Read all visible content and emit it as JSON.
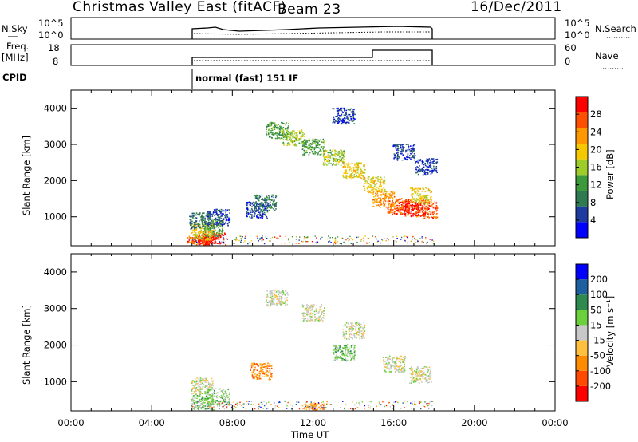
{
  "header": {
    "station": "Christmas Valley East (fitACF)",
    "beam": "Beam 23",
    "date": "16/Dec/2011"
  },
  "strip_nsky": {
    "label": "N.Sky",
    "right_label": "N.Search",
    "left_ticks": [
      "10^5",
      "10^0"
    ],
    "right_ticks": [
      "10^5",
      "10^0"
    ]
  },
  "strip_freq": {
    "label_line1": "Freq.",
    "label_line2": "[MHz]",
    "right_label": "Nave",
    "left_ticks": [
      "18",
      "8"
    ],
    "right_ticks": [
      "60",
      "0"
    ]
  },
  "cpid": {
    "label": "CPID",
    "program": "normal (fast) 151 IF"
  },
  "colors": {
    "power": [
      "#0000ff",
      "#1e3ca0",
      "#2f7a50",
      "#3c9a3c",
      "#9ecc28",
      "#f5c800",
      "#ff9800",
      "#ff5000",
      "#ff0000"
    ],
    "velocity": [
      "#ff0000",
      "#ff4a00",
      "#ff8c00",
      "#ffc040",
      "#c8c8c8",
      "#6ccf3c",
      "#2f8a50",
      "#1e5fa0",
      "#0000ff"
    ]
  },
  "chart_data": [
    {
      "type": "heatmap",
      "name": "power-panel",
      "xlabel": "",
      "ylabel": "Slant Range [km]",
      "xlim": [
        0,
        24
      ],
      "ylim": [
        200,
        4500
      ],
      "yticks": [
        1000,
        2000,
        3000,
        4000
      ],
      "colorbar": {
        "label": "Power [dB]",
        "range": [
          0,
          32
        ],
        "ticks": [
          "28",
          "24",
          "20",
          "16",
          "12",
          "8",
          "4"
        ]
      },
      "regions": [
        {
          "t": 6.3,
          "r": 250,
          "level": 7
        },
        {
          "t": 6.6,
          "r": 300,
          "level": 8
        },
        {
          "t": 7.1,
          "r": 350,
          "level": 8
        },
        {
          "t": 6.5,
          "r": 600,
          "level": 5
        },
        {
          "t": 7.0,
          "r": 700,
          "level": 3
        },
        {
          "t": 6.4,
          "r": 900,
          "level": 2
        },
        {
          "t": 7.3,
          "r": 1000,
          "level": 1
        },
        {
          "t": 9.2,
          "r": 1200,
          "level": 1
        },
        {
          "t": 9.6,
          "r": 1400,
          "level": 2
        },
        {
          "t": 10.2,
          "r": 3400,
          "level": 3
        },
        {
          "t": 11.0,
          "r": 3200,
          "level": 4
        },
        {
          "t": 12.0,
          "r": 2950,
          "level": 3
        },
        {
          "t": 13.0,
          "r": 2650,
          "level": 4
        },
        {
          "t": 14.0,
          "r": 2300,
          "level": 5
        },
        {
          "t": 15.0,
          "r": 1900,
          "level": 5
        },
        {
          "t": 15.5,
          "r": 1500,
          "level": 6
        },
        {
          "t": 16.2,
          "r": 1300,
          "level": 7
        },
        {
          "t": 17.0,
          "r": 1250,
          "level": 8
        },
        {
          "t": 17.6,
          "r": 1200,
          "level": 7
        },
        {
          "t": 17.3,
          "r": 1600,
          "level": 5
        },
        {
          "t": 13.5,
          "r": 3800,
          "level": 1
        },
        {
          "t": 16.5,
          "r": 2800,
          "level": 1
        },
        {
          "t": 17.6,
          "r": 2400,
          "level": 1
        }
      ]
    },
    {
      "type": "heatmap",
      "name": "velocity-panel",
      "xlabel": "Time UT",
      "ylabel": "Slant Range [km]",
      "xlim": [
        0,
        24
      ],
      "ylim": [
        200,
        4500
      ],
      "xticks": [
        "00:00",
        "04:00",
        "08:00",
        "12:00",
        "16:00",
        "20:00",
        "00:00"
      ],
      "yticks": [
        1000,
        2000,
        3000,
        4000
      ],
      "colorbar": {
        "label": "Velocity [m s⁻¹]",
        "range": [
          -250,
          250
        ],
        "ticks": [
          "200",
          "100",
          "50",
          "15",
          "-15",
          "-50",
          "-100",
          "-200"
        ]
      },
      "regions": [
        {
          "t": 6.5,
          "r": 900,
          "level": 4
        },
        {
          "t": 6.5,
          "r": 450,
          "level": 5
        },
        {
          "t": 7.3,
          "r": 600,
          "level": 5
        },
        {
          "t": 9.4,
          "r": 1300,
          "level": 2
        },
        {
          "t": 10.2,
          "r": 3300,
          "level": 4
        },
        {
          "t": 12.0,
          "r": 2900,
          "level": 4
        },
        {
          "t": 14.0,
          "r": 2400,
          "level": 4
        },
        {
          "t": 16.0,
          "r": 1500,
          "level": 4
        },
        {
          "t": 17.3,
          "r": 1200,
          "level": 4
        },
        {
          "t": 13.5,
          "r": 1800,
          "level": 5
        },
        {
          "t": 12.0,
          "r": 200,
          "level": 2
        }
      ]
    }
  ]
}
